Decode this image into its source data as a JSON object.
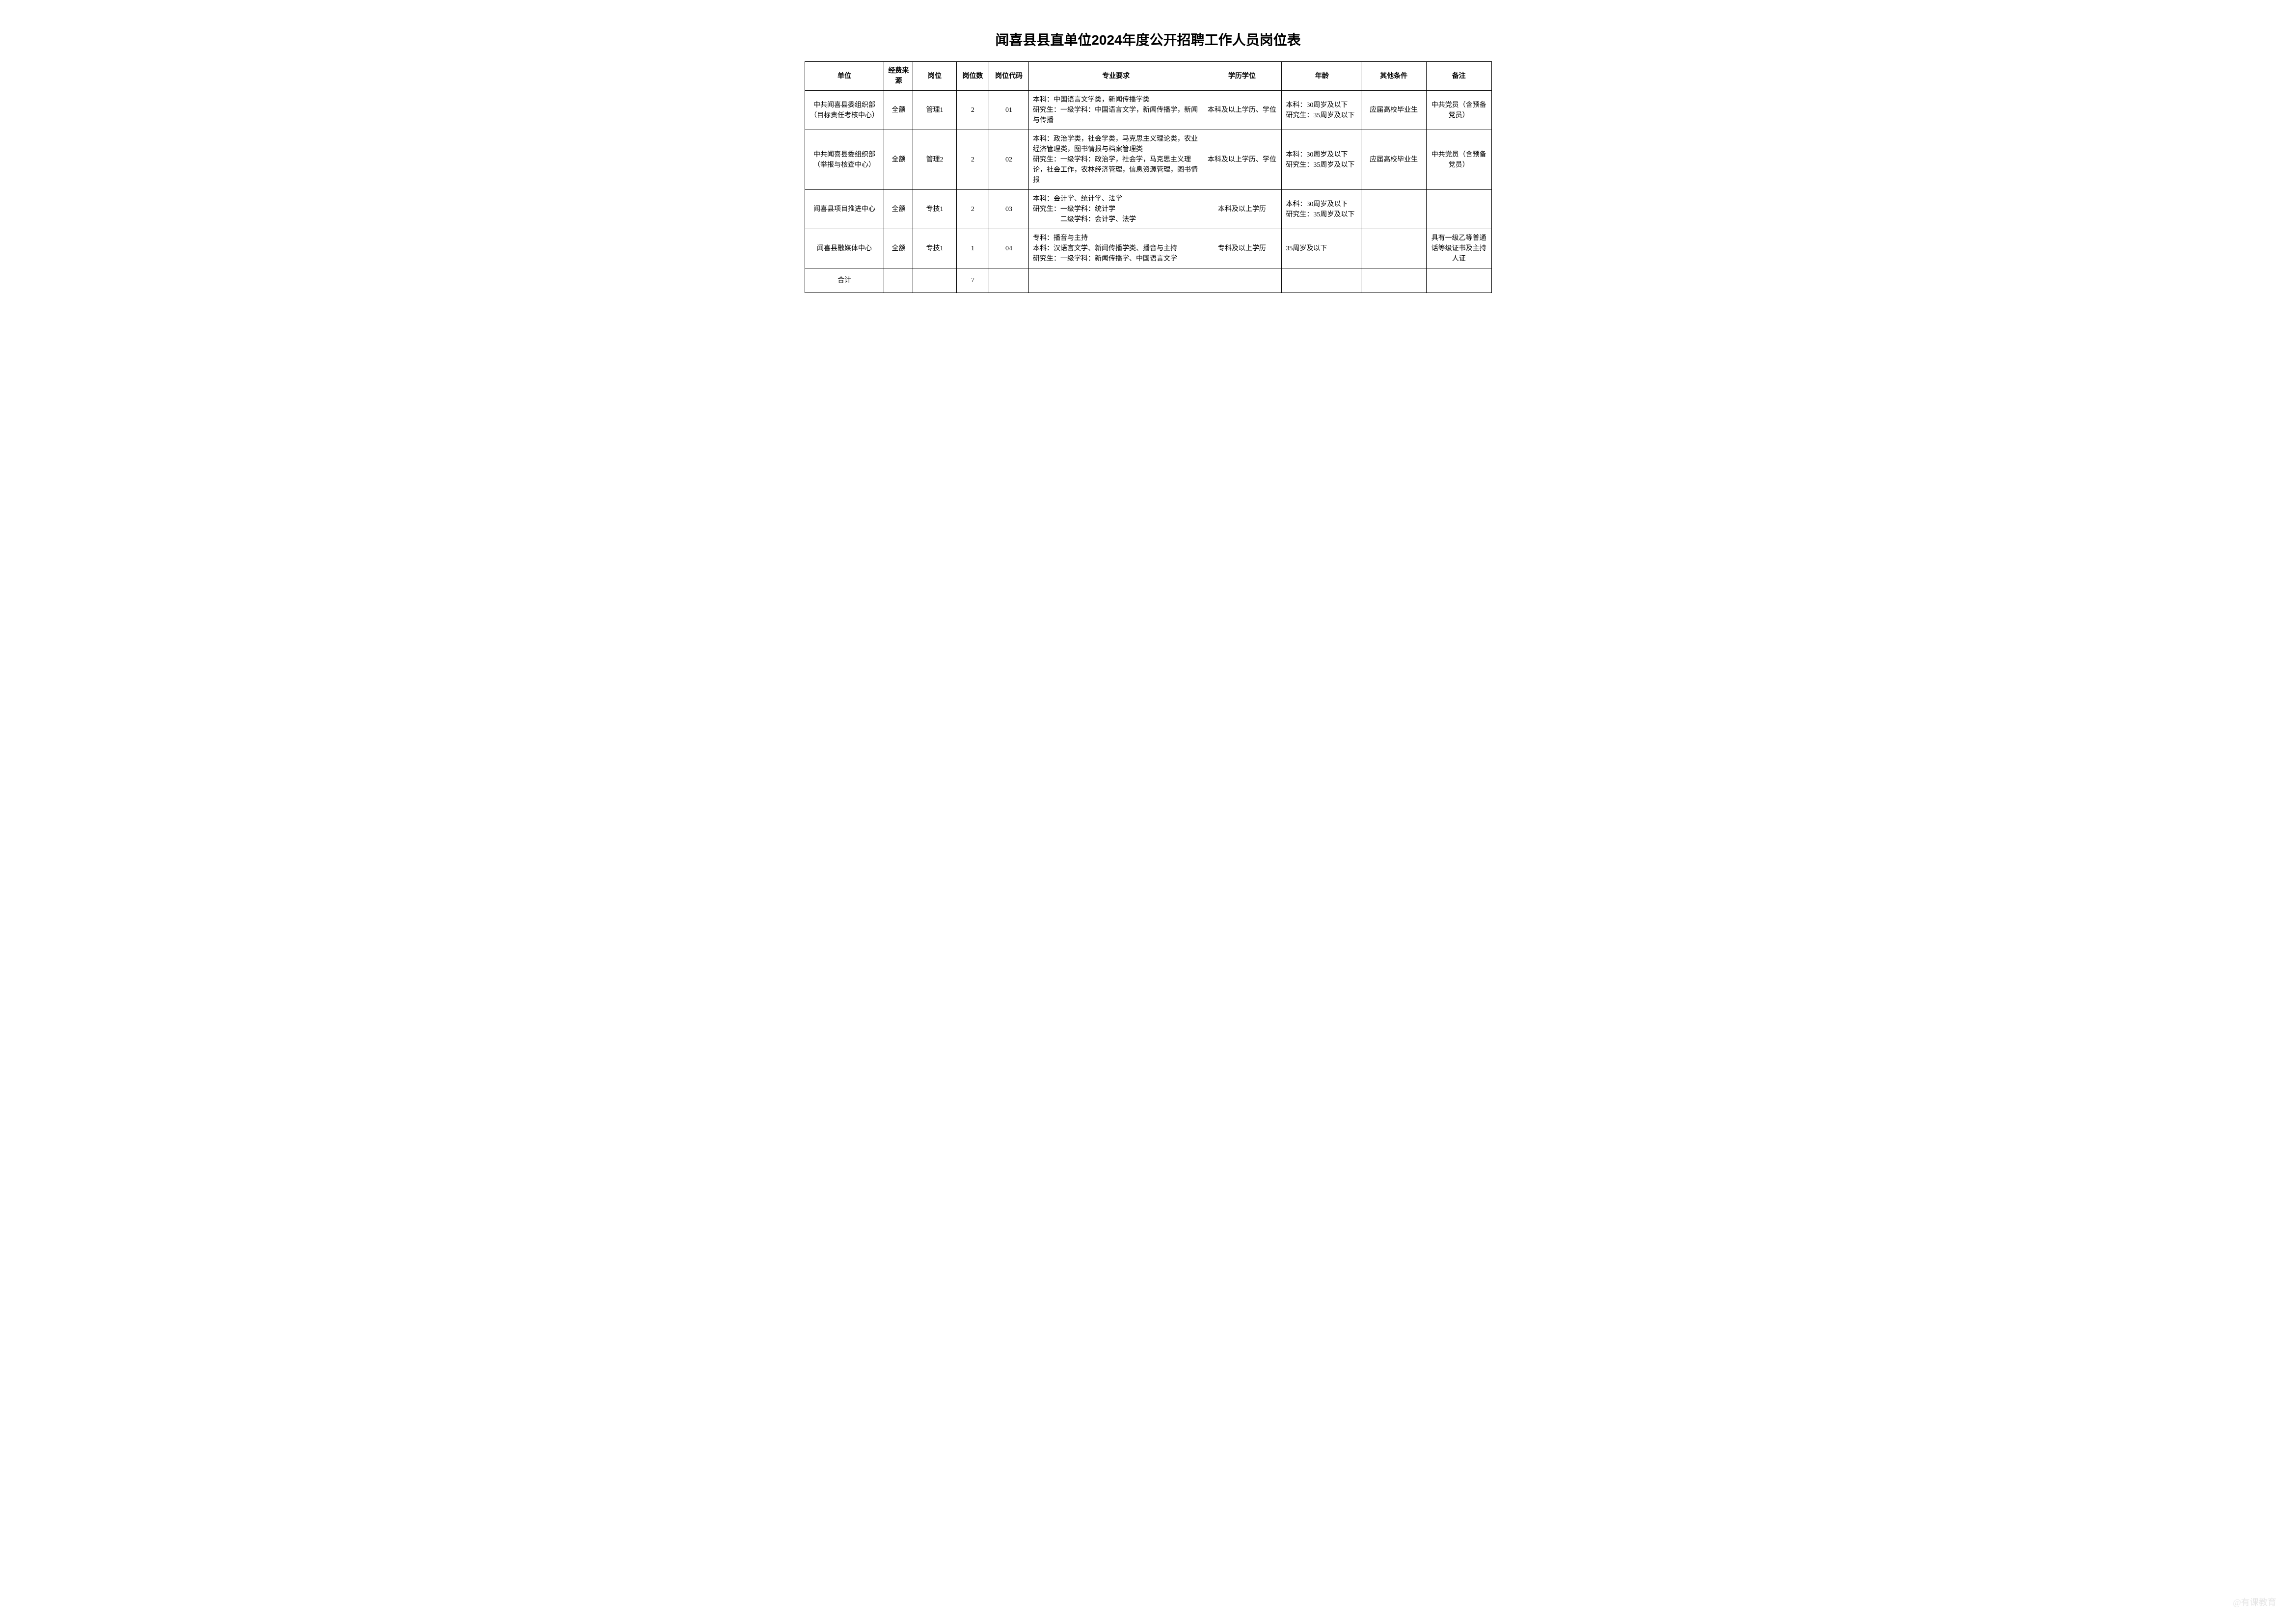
{
  "title": "闻喜县县直单位2024年度公开招聘工作人员岗位表",
  "watermark": "@有课教育",
  "headers": {
    "unit": "单位",
    "funding": "经费来源",
    "position": "岗位",
    "count": "岗位数",
    "code": "岗位代码",
    "major": "专业要求",
    "education": "学历学位",
    "age": "年龄",
    "other": "其他条件",
    "notes": "备注"
  },
  "rows": [
    {
      "unit": "中共闻喜县委组织部（目标责任考核中心）",
      "funding": "全额",
      "position": "管理1",
      "count": "2",
      "code": "01",
      "major": "本科：中国语言文学类，新闻传播学类\n研究生：一级学科：中国语言文学，新闻传播学，新闻与传播",
      "education": "本科及以上学历、学位",
      "age": "本科：30周岁及以下\n研究生：35周岁及以下",
      "other": "应届高校毕业生",
      "notes": "中共党员（含预备党员）"
    },
    {
      "unit": "中共闻喜县委组织部（举报与核查中心）",
      "funding": "全额",
      "position": "管理2",
      "count": "2",
      "code": "02",
      "major": "本科：政治学类，社会学类，马克思主义理论类，农业经济管理类，图书情报与档案管理类\n研究生：一级学科：政治学，社会学，马克思主义理论，社会工作，农林经济管理，信息资源管理，图书情报",
      "education": "本科及以上学历、学位",
      "age": "本科：30周岁及以下\n研究生：35周岁及以下",
      "other": "应届高校毕业生",
      "notes": "中共党员（含预备党员）"
    },
    {
      "unit": "闻喜县项目推进中心",
      "funding": "全额",
      "position": "专技1",
      "count": "2",
      "code": "03",
      "major": "本科：会计学、统计学、法学\n研究生：一级学科：统计学\n　　　　二级学科：会计学、法学",
      "education": "本科及以上学历",
      "age": "本科：30周岁及以下\n研究生：35周岁及以下",
      "other": "",
      "notes": ""
    },
    {
      "unit": "闻喜县融媒体中心",
      "funding": "全额",
      "position": "专技1",
      "count": "1",
      "code": "04",
      "major": "专科：播音与主持\n本科：汉语言文学、新闻传播学类、播音与主持\n研究生：一级学科：新闻传播学、中国语言文学",
      "education": "专科及以上学历",
      "age": "35周岁及以下",
      "other": "",
      "notes": "具有一级乙等普通话等级证书及主持人证"
    }
  ],
  "total": {
    "label": "合计",
    "count": "7"
  }
}
